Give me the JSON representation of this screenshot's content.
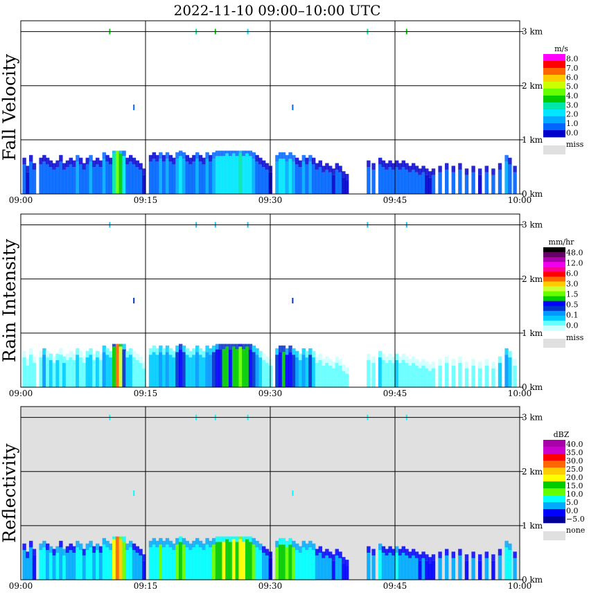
{
  "title": "2022-11-10   09:00–10:00 UTC",
  "time_ticks": [
    "09:00",
    "09:15",
    "09:30",
    "09:45",
    "10:00"
  ],
  "height_ticks": [
    "0 km",
    "1 km",
    "2 km",
    "3 km"
  ],
  "panels": [
    {
      "name": "fall-velocity",
      "label": "Fall Velocity",
      "background": "#ffffff",
      "legend": {
        "unit": "m/s",
        "colors": [
          "#ff00ff",
          "#ff0000",
          "#ff6600",
          "#ffcc00",
          "#ccff00",
          "#66ff00",
          "#00cc00",
          "#00e6aa",
          "#00e6ff",
          "#00aaff",
          "#0066ff",
          "#0000cc"
        ],
        "labels": [
          "8.0",
          "7.0",
          "6.0",
          "5.0",
          "4.0",
          "3.0",
          "2.0",
          "1.0",
          "0.0"
        ],
        "missing_label": "miss"
      }
    },
    {
      "name": "rain-intensity",
      "label": "Rain Intensity",
      "background": "#ffffff",
      "legend": {
        "unit": "mm/hr",
        "colors": [
          "#000000",
          "#660066",
          "#aa00aa",
          "#ee00ee",
          "#ff0099",
          "#ff0000",
          "#ff6600",
          "#ffcc00",
          "#ccff33",
          "#66ff00",
          "#00cc00",
          "#0000ff",
          "#0033cc",
          "#0099ff",
          "#00ccff",
          "#66ffff",
          "#ccffff"
        ],
        "labels": [
          "48.0",
          "12.0",
          "6.0",
          "3.0",
          "1.5",
          "0.5",
          "0.1",
          "0.0"
        ],
        "missing_label": "miss"
      }
    },
    {
      "name": "reflectivity",
      "label": "Reflectivity",
      "background": "#e0e0e0",
      "legend": {
        "unit": "dBZ",
        "colors": [
          "#aa00aa",
          "#cc00cc",
          "#ff0000",
          "#ff6600",
          "#ffcc00",
          "#ffff00",
          "#00cc00",
          "#66ff00",
          "#00ffff",
          "#00aaff",
          "#0000ff",
          "#000099"
        ],
        "labels": [
          "40.0",
          "35.0",
          "30.0",
          "25.0",
          "20.0",
          "15.0",
          "10.0",
          "5.0",
          "0.0",
          "−5.0"
        ],
        "missing_label": "none"
      }
    }
  ],
  "chart_data": {
    "type": "heatmap",
    "x_range_minutes": [
      0,
      60
    ],
    "y_range_km": [
      0,
      3.2
    ],
    "grid": true,
    "legend": "right",
    "echo_layer_top_km": 0.8,
    "columns": [
      {
        "t": 0.2,
        "top": 0.55,
        "fv": 1.0,
        "ri": 0.1,
        "dbz": 5
      },
      {
        "t": 0.6,
        "top": 0.4,
        "fv": 0.5,
        "ri": 0.1,
        "dbz": 3
      },
      {
        "t": 1.0,
        "top": 0.6,
        "fv": 1.5,
        "ri": 0.1,
        "dbz": 5
      },
      {
        "t": 1.4,
        "top": 0.45,
        "fv": 1.0,
        "ri": 0.1,
        "dbz": 2
      },
      {
        "t": 2.2,
        "top": 0.55,
        "fv": 1.5,
        "ri": 0.1,
        "dbz": 6
      },
      {
        "t": 2.6,
        "top": 0.6,
        "fv": 1.5,
        "ri": 0.3,
        "dbz": 8
      },
      {
        "t": 3.0,
        "top": 0.55,
        "fv": 1.0,
        "ri": 0.1,
        "dbz": 5
      },
      {
        "t": 3.4,
        "top": 0.5,
        "fv": 1.5,
        "ri": 0.2,
        "dbz": 6
      },
      {
        "t": 3.8,
        "top": 0.45,
        "fv": 1.0,
        "ri": 0.1,
        "dbz": 4
      },
      {
        "t": 4.2,
        "top": 0.5,
        "fv": 1.5,
        "ri": 0.2,
        "dbz": 7
      },
      {
        "t": 4.6,
        "top": 0.6,
        "fv": 1.0,
        "ri": 0.1,
        "dbz": 5
      },
      {
        "t": 5.0,
        "top": 0.45,
        "fv": 1.5,
        "ri": 0.2,
        "dbz": 6
      },
      {
        "t": 5.4,
        "top": 0.5,
        "fv": 1.0,
        "ri": 0.1,
        "dbz": 4
      },
      {
        "t": 5.8,
        "top": 0.55,
        "fv": 1.5,
        "ri": 0.1,
        "dbz": 5
      },
      {
        "t": 6.2,
        "top": 0.5,
        "fv": 1.0,
        "ri": 0.1,
        "dbz": 3
      },
      {
        "t": 6.6,
        "top": 0.6,
        "fv": 2.0,
        "ri": 0.2,
        "dbz": 8
      },
      {
        "t": 7.0,
        "top": 0.55,
        "fv": 1.5,
        "ri": 0.1,
        "dbz": 6
      },
      {
        "t": 7.4,
        "top": 0.45,
        "fv": 1.0,
        "ri": 0.1,
        "dbz": 4
      },
      {
        "t": 7.8,
        "top": 0.55,
        "fv": 1.5,
        "ri": 0.2,
        "dbz": 7
      },
      {
        "t": 8.2,
        "top": 0.6,
        "fv": 2.0,
        "ri": 0.2,
        "dbz": 8
      },
      {
        "t": 8.6,
        "top": 0.5,
        "fv": 1.5,
        "ri": 0.1,
        "dbz": 5
      },
      {
        "t": 9.0,
        "top": 0.55,
        "fv": 1.5,
        "ri": 0.2,
        "dbz": 6
      },
      {
        "t": 9.4,
        "top": 0.5,
        "fv": 1.0,
        "ri": 0.1,
        "dbz": 4
      },
      {
        "t": 9.8,
        "top": 0.65,
        "fv": 2.0,
        "ri": 0.3,
        "dbz": 9
      },
      {
        "t": 10.2,
        "top": 0.6,
        "fv": 1.5,
        "ri": 0.2,
        "dbz": 7
      },
      {
        "t": 10.6,
        "top": 0.55,
        "fv": 1.5,
        "ri": 0.2,
        "dbz": 6
      },
      {
        "t": 11.0,
        "top": 0.75,
        "fv": 3.5,
        "ri": 1.5,
        "dbz": 18
      },
      {
        "t": 11.4,
        "top": 0.8,
        "fv": 4.5,
        "ri": 4.0,
        "dbz": 26
      },
      {
        "t": 11.8,
        "top": 0.75,
        "fv": 4.0,
        "ri": 2.5,
        "dbz": 22
      },
      {
        "t": 12.2,
        "top": 0.7,
        "fv": 2.5,
        "ri": 0.5,
        "dbz": 12
      },
      {
        "t": 12.6,
        "top": 0.55,
        "fv": 1.5,
        "ri": 0.2,
        "dbz": 6
      },
      {
        "t": 13.0,
        "top": 0.6,
        "fv": 1.5,
        "ri": 0.2,
        "dbz": 7
      },
      {
        "t": 13.4,
        "top": 0.55,
        "fv": 1.0,
        "ri": 0.1,
        "dbz": 5
      },
      {
        "t": 13.8,
        "top": 0.5,
        "fv": 1.0,
        "ri": 0.1,
        "dbz": 4
      },
      {
        "t": 14.2,
        "top": 0.45,
        "fv": 1.0,
        "ri": 0.1,
        "dbz": 3
      },
      {
        "t": 14.6,
        "top": 0.35,
        "fv": 0.5,
        "ri": 0.1,
        "dbz": 2
      },
      {
        "t": 15.4,
        "top": 0.6,
        "fv": 1.5,
        "ri": 0.2,
        "dbz": 6
      },
      {
        "t": 15.8,
        "top": 0.65,
        "fv": 1.5,
        "ri": 0.2,
        "dbz": 8
      },
      {
        "t": 16.2,
        "top": 0.6,
        "fv": 1.5,
        "ri": 0.2,
        "dbz": 7
      },
      {
        "t": 16.6,
        "top": 0.65,
        "fv": 2.0,
        "ri": 0.3,
        "dbz": 10
      },
      {
        "t": 17.0,
        "top": 0.6,
        "fv": 1.5,
        "ri": 0.2,
        "dbz": 8
      },
      {
        "t": 17.4,
        "top": 0.65,
        "fv": 2.0,
        "ri": 0.3,
        "dbz": 9
      },
      {
        "t": 17.8,
        "top": 0.6,
        "fv": 1.5,
        "ri": 0.2,
        "dbz": 7
      },
      {
        "t": 18.2,
        "top": 0.55,
        "fv": 1.5,
        "ri": 0.2,
        "dbz": 6
      },
      {
        "t": 18.6,
        "top": 0.65,
        "fv": 2.0,
        "ri": 0.5,
        "dbz": 11
      },
      {
        "t": 19.0,
        "top": 0.7,
        "fv": 2.5,
        "ri": 1.0,
        "dbz": 15
      },
      {
        "t": 19.4,
        "top": 0.65,
        "fv": 2.0,
        "ri": 0.5,
        "dbz": 10
      },
      {
        "t": 19.8,
        "top": 0.6,
        "fv": 1.5,
        "ri": 0.2,
        "dbz": 7
      },
      {
        "t": 20.2,
        "top": 0.55,
        "fv": 1.5,
        "ri": 0.2,
        "dbz": 6
      },
      {
        "t": 20.6,
        "top": 0.6,
        "fv": 1.5,
        "ri": 0.2,
        "dbz": 7
      },
      {
        "t": 21.0,
        "top": 0.65,
        "fv": 2.0,
        "ri": 0.3,
        "dbz": 9
      },
      {
        "t": 21.4,
        "top": 0.6,
        "fv": 1.5,
        "ri": 0.2,
        "dbz": 7
      },
      {
        "t": 21.8,
        "top": 0.55,
        "fv": 1.5,
        "ri": 0.2,
        "dbz": 6
      },
      {
        "t": 22.2,
        "top": 0.65,
        "fv": 2.0,
        "ri": 0.3,
        "dbz": 9
      },
      {
        "t": 22.6,
        "top": 0.6,
        "fv": 1.5,
        "ri": 0.3,
        "dbz": 8
      },
      {
        "t": 23.0,
        "top": 0.65,
        "fv": 2.0,
        "ri": 0.5,
        "dbz": 11
      },
      {
        "t": 23.4,
        "top": 0.7,
        "fv": 2.5,
        "ri": 0.8,
        "dbz": 14
      },
      {
        "t": 23.8,
        "top": 0.7,
        "fv": 3.0,
        "ri": 1.0,
        "dbz": 16
      },
      {
        "t": 24.2,
        "top": 0.7,
        "fv": 3.0,
        "ri": 1.5,
        "dbz": 18
      },
      {
        "t": 24.6,
        "top": 0.75,
        "fv": 3.0,
        "ri": 1.2,
        "dbz": 17
      },
      {
        "t": 25.0,
        "top": 0.7,
        "fv": 2.5,
        "ri": 1.0,
        "dbz": 15
      },
      {
        "t": 25.4,
        "top": 0.75,
        "fv": 3.0,
        "ri": 1.5,
        "dbz": 18
      },
      {
        "t": 25.8,
        "top": 0.7,
        "fv": 3.0,
        "ri": 1.2,
        "dbz": 17
      },
      {
        "t": 26.2,
        "top": 0.75,
        "fv": 3.5,
        "ri": 2.0,
        "dbz": 20
      },
      {
        "t": 26.6,
        "top": 0.7,
        "fv": 3.0,
        "ri": 1.5,
        "dbz": 18
      },
      {
        "t": 27.0,
        "top": 0.75,
        "fv": 3.0,
        "ri": 1.2,
        "dbz": 17
      },
      {
        "t": 27.4,
        "top": 0.7,
        "fv": 2.5,
        "ri": 1.0,
        "dbz": 15
      },
      {
        "t": 27.8,
        "top": 0.65,
        "fv": 2.0,
        "ri": 0.5,
        "dbz": 11
      },
      {
        "t": 28.2,
        "top": 0.6,
        "fv": 1.5,
        "ri": 0.3,
        "dbz": 8
      },
      {
        "t": 28.6,
        "top": 0.55,
        "fv": 1.5,
        "ri": 0.2,
        "dbz": 6
      },
      {
        "t": 29.0,
        "top": 0.5,
        "fv": 1.0,
        "ri": 0.1,
        "dbz": 4
      },
      {
        "t": 29.4,
        "top": 0.45,
        "fv": 1.0,
        "ri": 0.1,
        "dbz": 3
      },
      {
        "t": 29.8,
        "top": 0.4,
        "fv": 0.5,
        "ri": 0.1,
        "dbz": 2
      },
      {
        "t": 30.6,
        "top": 0.6,
        "fv": 2.0,
        "ri": 0.5,
        "dbz": 10
      },
      {
        "t": 31.0,
        "top": 0.65,
        "fv": 2.5,
        "ri": 1.0,
        "dbz": 14
      },
      {
        "t": 31.4,
        "top": 0.65,
        "fv": 2.5,
        "ri": 1.5,
        "dbz": 16
      },
      {
        "t": 31.8,
        "top": 0.6,
        "fv": 2.0,
        "ri": 0.8,
        "dbz": 12
      },
      {
        "t": 32.2,
        "top": 0.65,
        "fv": 2.5,
        "ri": 1.0,
        "dbz": 14
      },
      {
        "t": 32.6,
        "top": 0.6,
        "fv": 2.0,
        "ri": 0.5,
        "dbz": 10
      },
      {
        "t": 33.0,
        "top": 0.55,
        "fv": 1.5,
        "ri": 0.3,
        "dbz": 7
      },
      {
        "t": 33.4,
        "top": 0.5,
        "fv": 1.5,
        "ri": 0.2,
        "dbz": 6
      },
      {
        "t": 33.8,
        "top": 0.6,
        "fv": 2.0,
        "ri": 0.3,
        "dbz": 8
      },
      {
        "t": 34.2,
        "top": 0.55,
        "fv": 1.5,
        "ri": 0.2,
        "dbz": 6
      },
      {
        "t": 34.6,
        "top": 0.6,
        "fv": 2.0,
        "ri": 0.5,
        "dbz": 9
      },
      {
        "t": 35.0,
        "top": 0.55,
        "fv": 1.5,
        "ri": 0.2,
        "dbz": 6
      },
      {
        "t": 35.4,
        "top": 0.45,
        "fv": 1.0,
        "ri": 0.1,
        "dbz": 4
      },
      {
        "t": 35.8,
        "top": 0.5,
        "fv": 1.0,
        "ri": 0.1,
        "dbz": 4
      },
      {
        "t": 36.2,
        "top": 0.4,
        "fv": 1.0,
        "ri": 0.1,
        "dbz": 3
      },
      {
        "t": 36.6,
        "top": 0.45,
        "fv": 1.0,
        "ri": 0.1,
        "dbz": 3
      },
      {
        "t": 37.0,
        "top": 0.4,
        "fv": 1.0,
        "ri": 0.1,
        "dbz": 3
      },
      {
        "t": 37.4,
        "top": 0.35,
        "fv": 0.5,
        "ri": 0.1,
        "dbz": 2
      },
      {
        "t": 37.8,
        "top": 0.45,
        "fv": 1.0,
        "ri": 0.1,
        "dbz": 3
      },
      {
        "t": 38.2,
        "top": 0.4,
        "fv": 1.0,
        "ri": 0.1,
        "dbz": 3
      },
      {
        "t": 38.6,
        "top": 0.3,
        "fv": 0.5,
        "ri": 0.1,
        "dbz": 2
      },
      {
        "t": 39.0,
        "top": 0.25,
        "fv": 0.5,
        "ri": 0.1,
        "dbz": 1
      },
      {
        "t": 41.6,
        "top": 0.5,
        "fv": 1.5,
        "ri": 0.1,
        "dbz": 4
      },
      {
        "t": 42.2,
        "top": 0.45,
        "fv": 1.0,
        "ri": 0.1,
        "dbz": 3
      },
      {
        "t": 43.0,
        "top": 0.55,
        "fv": 1.5,
        "ri": 0.2,
        "dbz": 6
      },
      {
        "t": 43.4,
        "top": 0.5,
        "fv": 1.0,
        "ri": 0.1,
        "dbz": 4
      },
      {
        "t": 43.8,
        "top": 0.45,
        "fv": 1.0,
        "ri": 0.1,
        "dbz": 4
      },
      {
        "t": 44.2,
        "top": 0.5,
        "fv": 1.5,
        "ri": 0.1,
        "dbz": 5
      },
      {
        "t": 44.6,
        "top": 0.45,
        "fv": 1.0,
        "ri": 0.1,
        "dbz": 3
      },
      {
        "t": 45.0,
        "top": 0.5,
        "fv": 1.5,
        "ri": 0.2,
        "dbz": 6
      },
      {
        "t": 45.4,
        "top": 0.45,
        "fv": 1.0,
        "ri": 0.1,
        "dbz": 4
      },
      {
        "t": 45.8,
        "top": 0.5,
        "fv": 1.5,
        "ri": 0.1,
        "dbz": 5
      },
      {
        "t": 46.2,
        "top": 0.45,
        "fv": 1.0,
        "ri": 0.1,
        "dbz": 3
      },
      {
        "t": 46.6,
        "top": 0.4,
        "fv": 1.0,
        "ri": 0.1,
        "dbz": 3
      },
      {
        "t": 47.0,
        "top": 0.45,
        "fv": 1.5,
        "ri": 0.1,
        "dbz": 4
      },
      {
        "t": 47.4,
        "top": 0.4,
        "fv": 1.0,
        "ri": 0.1,
        "dbz": 3
      },
      {
        "t": 47.8,
        "top": 0.35,
        "fv": 1.0,
        "ri": 0.1,
        "dbz": 2
      },
      {
        "t": 48.2,
        "top": 0.4,
        "fv": 1.0,
        "ri": 0.1,
        "dbz": 3
      },
      {
        "t": 48.6,
        "top": 0.35,
        "fv": 0.5,
        "ri": 0.1,
        "dbz": 2
      },
      {
        "t": 49.0,
        "top": 0.3,
        "fv": 0.5,
        "ri": 0.1,
        "dbz": 1
      },
      {
        "t": 49.4,
        "top": 0.35,
        "fv": 1.0,
        "ri": 0.1,
        "dbz": 2
      },
      {
        "t": 50.2,
        "top": 0.4,
        "fv": 1.0,
        "ri": 0.1,
        "dbz": 3
      },
      {
        "t": 51.0,
        "top": 0.45,
        "fv": 1.5,
        "ri": 0.1,
        "dbz": 4
      },
      {
        "t": 51.8,
        "top": 0.4,
        "fv": 1.0,
        "ri": 0.1,
        "dbz": 3
      },
      {
        "t": 52.6,
        "top": 0.45,
        "fv": 1.5,
        "ri": 0.1,
        "dbz": 4
      },
      {
        "t": 53.4,
        "top": 0.35,
        "fv": 1.0,
        "ri": 0.1,
        "dbz": 2
      },
      {
        "t": 54.2,
        "top": 0.4,
        "fv": 1.0,
        "ri": 0.1,
        "dbz": 3
      },
      {
        "t": 55.0,
        "top": 0.35,
        "fv": 0.5,
        "ri": 0.1,
        "dbz": 2
      },
      {
        "t": 55.8,
        "top": 0.4,
        "fv": 1.0,
        "ri": 0.1,
        "dbz": 3
      },
      {
        "t": 56.6,
        "top": 0.35,
        "fv": 1.0,
        "ri": 0.1,
        "dbz": 2
      },
      {
        "t": 57.4,
        "top": 0.45,
        "fv": 1.5,
        "ri": 0.2,
        "dbz": 5
      },
      {
        "t": 58.2,
        "top": 0.6,
        "fv": 2.0,
        "ri": 0.3,
        "dbz": 9
      },
      {
        "t": 58.6,
        "top": 0.55,
        "fv": 1.5,
        "ri": 0.2,
        "dbz": 6
      },
      {
        "t": 59.2,
        "top": 0.4,
        "fv": 1.0,
        "ri": 0.1,
        "dbz": 3
      }
    ],
    "isolated_points": [
      {
        "t": 10.7,
        "h": 3.0,
        "fv": 4.0,
        "ri": 0.2,
        "dbz": 8
      },
      {
        "t": 21.1,
        "h": 3.0,
        "fv": 3.5,
        "ri": 0.2,
        "dbz": 8
      },
      {
        "t": 23.4,
        "h": 3.0,
        "fv": 4.0,
        "ri": 0.2,
        "dbz": 8
      },
      {
        "t": 27.3,
        "h": 3.0,
        "fv": 3.0,
        "ri": 0.2,
        "dbz": 8
      },
      {
        "t": 41.7,
        "h": 3.0,
        "fv": 3.5,
        "ri": 0.2,
        "dbz": 8
      },
      {
        "t": 46.4,
        "h": 3.0,
        "fv": 4.0,
        "ri": 0.2,
        "dbz": 8
      },
      {
        "t": 13.6,
        "h": 1.6,
        "fv": 1.5,
        "ri": 0.5,
        "dbz": 9
      },
      {
        "t": 32.7,
        "h": 1.6,
        "fv": 1.5,
        "ri": 0.5,
        "dbz": 9
      }
    ]
  }
}
